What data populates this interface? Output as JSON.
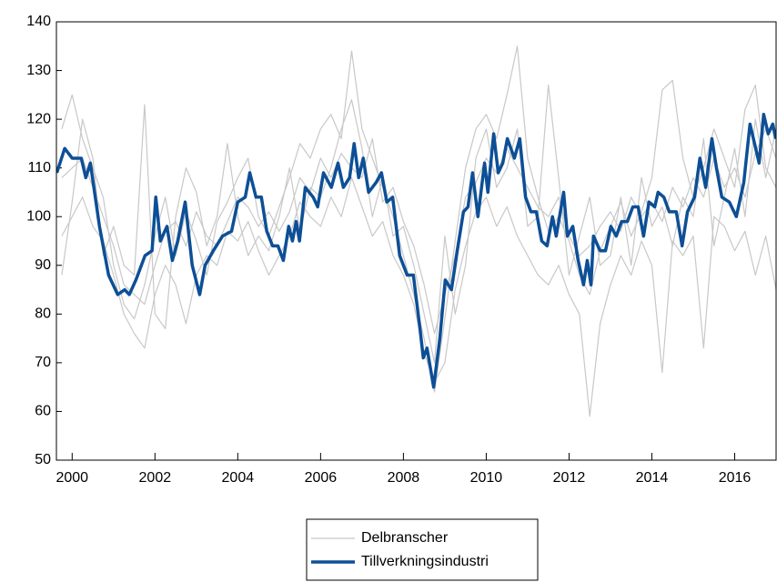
{
  "chart_data": {
    "type": "line",
    "xlim": [
      1999.62,
      2017.0
    ],
    "xticks": [
      2000,
      2002,
      2004,
      2006,
      2008,
      2010,
      2012,
      2014,
      2016
    ],
    "ylim": [
      50,
      140
    ],
    "yticks": [
      50,
      60,
      70,
      80,
      90,
      100,
      110,
      120,
      130,
      140
    ],
    "grid": false,
    "legend": "bottom",
    "series": [
      {
        "name": "Delbranscher",
        "color": "#c8c8c8",
        "width": 1.2,
        "x": [
          1999.75,
          2000,
          2000.25,
          2000.5,
          2000.75,
          2001,
          2001.25,
          2001.5,
          2001.75,
          2002,
          2002.25,
          2002.5,
          2002.75,
          2003,
          2003.25,
          2003.5,
          2003.75,
          2004,
          2004.25,
          2004.5,
          2004.75,
          2005,
          2005.25,
          2005.5,
          2005.75,
          2006,
          2006.25,
          2006.5,
          2006.75,
          2007,
          2007.25,
          2007.5,
          2007.75,
          2008,
          2008.25,
          2008.5,
          2008.75,
          2009,
          2009.25,
          2009.5,
          2009.75,
          2010,
          2010.25,
          2010.5,
          2010.75,
          2011,
          2011.25,
          2011.5,
          2011.75,
          2012,
          2012.25,
          2012.5,
          2012.75,
          2013,
          2013.25,
          2013.5,
          2013.75,
          2014,
          2014.25,
          2014.5,
          2014.75,
          2015,
          2015.25,
          2015.5,
          2015.75,
          2016,
          2016.25,
          2016.5,
          2016.75,
          2017
        ],
        "values": [
          [
            118,
            125,
            116,
            110,
            104,
            90,
            82,
            79,
            86,
            96,
            104,
            92,
            101,
            95,
            88,
            99,
            103,
            108,
            112,
            100,
            96,
            102,
            108,
            115,
            112,
            118,
            121,
            116,
            134,
            118,
            112,
            106,
            100,
            92,
            84,
            75,
            64,
            79,
            95,
            110,
            118,
            121,
            116,
            125,
            135,
            112,
            104,
            97,
            100,
            95,
            88,
            84,
            93,
            98,
            103,
            96,
            101,
            108,
            126,
            128,
            112,
            104,
            110,
            118,
            112,
            106,
            122,
            127,
            110,
            106
          ],
          [
            96,
            100,
            104,
            98,
            95,
            88,
            80,
            76,
            73,
            84,
            90,
            86,
            78,
            88,
            92,
            90,
            97,
            95,
            99,
            93,
            88,
            92,
            96,
            103,
            100,
            98,
            104,
            100,
            108,
            102,
            96,
            99,
            92,
            88,
            82,
            72,
            66,
            70,
            85,
            94,
            101,
            104,
            98,
            102,
            96,
            92,
            88,
            86,
            90,
            84,
            80,
            59,
            78,
            86,
            92,
            88,
            95,
            90,
            68,
            95,
            92,
            96,
            73,
            100,
            98,
            93,
            97,
            88,
            96,
            85
          ],
          [
            108,
            110,
            112,
            106,
            100,
            94,
            86,
            84,
            82,
            90,
            97,
            99,
            94,
            101,
            96,
            94,
            99,
            104,
            102,
            98,
            101,
            97,
            101,
            108,
            105,
            112,
            108,
            113,
            110,
            108,
            116,
            103,
            106,
            99,
            94,
            86,
            76,
            84,
            92,
            104,
            107,
            112,
            109,
            114,
            110,
            106,
            102,
            100,
            104,
            96,
            92,
            94,
            98,
            101,
            97,
            104,
            100,
            103,
            99,
            106,
            102,
            108,
            104,
            112,
            106,
            110,
            104,
            113,
            118,
            112
          ],
          [
            88,
            103,
            120,
            112,
            92,
            98,
            90,
            88,
            123,
            80,
            77,
            100,
            110,
            105,
            94,
            100,
            115,
            100,
            92,
            96,
            93,
            100,
            110,
            97,
            106,
            104,
            110,
            118,
            124,
            114,
            100,
            108,
            96,
            98,
            90,
            80,
            70,
            96,
            80,
            90,
            112,
            118,
            106,
            110,
            118,
            98,
            100,
            127,
            108,
            88,
            96,
            104,
            90,
            92,
            104,
            90,
            108,
            98,
            102,
            94,
            104,
            100,
            116,
            94,
            104,
            114,
            100,
            120,
            108,
            118
          ]
        ]
      },
      {
        "name": "Tillverkningsindustri",
        "color": "#0d4f96",
        "width": 3.5,
        "x": [
          1999.63,
          1999.82,
          2000.0,
          2000.22,
          2000.33,
          2000.44,
          2000.66,
          2000.88,
          2001.1,
          2001.27,
          2001.38,
          2001.54,
          2001.76,
          2001.93,
          2002.02,
          2002.13,
          2002.29,
          2002.42,
          2002.55,
          2002.73,
          2002.9,
          2003.08,
          2003.21,
          2003.41,
          2003.63,
          2003.85,
          2004.0,
          2004.18,
          2004.29,
          2004.44,
          2004.57,
          2004.7,
          2004.84,
          2004.97,
          2005.1,
          2005.23,
          2005.32,
          2005.41,
          2005.49,
          2005.63,
          2005.82,
          2005.93,
          2006.07,
          2006.26,
          2006.42,
          2006.55,
          2006.7,
          2006.81,
          2006.92,
          2007.03,
          2007.16,
          2007.34,
          2007.47,
          2007.6,
          2007.74,
          2007.91,
          2008.09,
          2008.24,
          2008.4,
          2008.48,
          2008.57,
          2008.73,
          2008.88,
          2009.01,
          2009.16,
          2009.3,
          2009.45,
          2009.56,
          2009.67,
          2009.8,
          2009.96,
          2010.04,
          2010.18,
          2010.29,
          2010.4,
          2010.51,
          2010.68,
          2010.81,
          2010.95,
          2011.08,
          2011.21,
          2011.34,
          2011.47,
          2011.6,
          2011.69,
          2011.87,
          2011.96,
          2012.09,
          2012.22,
          2012.35,
          2012.44,
          2012.53,
          2012.59,
          2012.75,
          2012.88,
          2013.01,
          2013.14,
          2013.27,
          2013.41,
          2013.54,
          2013.67,
          2013.8,
          2013.93,
          2014.07,
          2014.15,
          2014.29,
          2014.42,
          2014.59,
          2014.73,
          2014.86,
          2015.03,
          2015.16,
          2015.3,
          2015.45,
          2015.56,
          2015.69,
          2015.87,
          2016.04,
          2016.22,
          2016.37,
          2016.59,
          2016.7,
          2016.81,
          2016.92,
          2016.99
        ],
        "values": [
          109,
          114,
          112,
          112,
          108,
          111,
          98,
          88,
          84,
          85,
          84,
          87,
          92,
          93,
          104,
          95,
          98,
          91,
          95,
          103,
          90,
          84,
          90,
          93,
          96,
          97,
          103,
          104,
          109,
          104,
          104,
          97,
          94,
          94,
          91,
          98,
          95,
          99,
          95,
          106,
          104,
          102,
          109,
          106,
          111,
          106,
          108,
          115,
          108,
          112,
          105,
          107,
          109,
          103,
          104,
          92,
          88,
          88,
          77,
          71,
          73,
          65,
          75,
          87,
          85,
          93,
          101,
          102,
          109,
          100,
          111,
          105,
          117,
          109,
          111,
          116,
          112,
          116,
          104,
          101,
          101,
          95,
          94,
          100,
          96,
          105,
          96,
          98,
          91,
          86,
          91,
          86,
          96,
          93,
          93,
          98,
          96,
          99,
          99,
          102,
          102,
          96,
          103,
          102,
          105,
          104,
          101,
          101,
          94,
          101,
          104,
          112,
          106,
          116,
          110,
          104,
          103,
          100,
          107,
          119,
          111,
          121,
          117,
          119,
          116
        ]
      }
    ]
  }
}
